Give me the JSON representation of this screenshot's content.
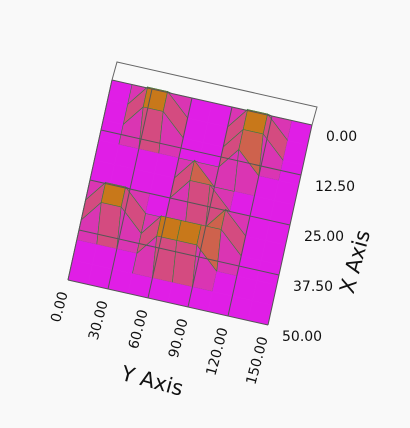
{
  "chart_data": {
    "type": "surface",
    "x_label": "X Axis",
    "y_label": "Y Axis",
    "x": [
      0,
      5,
      10,
      15,
      20,
      25,
      30,
      35,
      40,
      45,
      50
    ],
    "y": [
      0,
      15,
      30,
      45,
      60,
      75,
      90,
      105,
      120,
      135,
      150
    ],
    "z": [
      [
        0,
        0,
        0,
        0,
        0,
        0,
        0,
        0,
        0,
        0,
        0
      ],
      [
        0,
        0,
        1,
        1,
        0,
        0,
        0,
        1,
        1,
        0,
        0
      ],
      [
        0,
        0,
        1,
        1,
        0,
        0,
        0,
        1,
        1,
        0,
        0
      ],
      [
        0,
        0,
        0,
        0,
        0,
        0,
        0,
        1,
        0,
        0,
        0
      ],
      [
        0,
        0,
        0,
        0,
        0,
        1,
        0,
        0,
        0,
        0,
        0
      ],
      [
        0,
        0,
        0,
        0,
        0,
        1,
        1,
        0,
        0,
        0,
        0
      ],
      [
        0,
        1,
        1,
        0,
        0,
        0,
        0,
        1,
        0,
        0,
        0
      ],
      [
        0,
        1,
        1,
        0,
        1,
        1,
        1,
        1,
        0,
        0,
        0
      ],
      [
        0,
        0,
        0,
        0,
        1,
        1,
        1,
        0,
        0,
        0,
        0
      ],
      [
        0,
        0,
        0,
        0,
        0,
        0,
        0,
        0,
        0,
        0,
        0
      ],
      [
        0,
        0,
        0,
        0,
        0,
        0,
        0,
        0,
        0,
        0,
        0
      ]
    ],
    "xlim": [
      0,
      50
    ],
    "ylim": [
      0,
      150
    ],
    "xticks": [
      {
        "value": 0,
        "label": "0.00"
      },
      {
        "value": 12.5,
        "label": "12.50"
      },
      {
        "value": 25,
        "label": "25.00"
      },
      {
        "value": 37.5,
        "label": "37.50"
      },
      {
        "value": 50,
        "label": "50.00"
      }
    ],
    "yticks": [
      {
        "value": 0,
        "label": "0.00"
      },
      {
        "value": 30,
        "label": "30.00"
      },
      {
        "value": 60,
        "label": "60.00"
      },
      {
        "value": 90,
        "label": "90.00"
      },
      {
        "value": 120,
        "label": "120.00"
      },
      {
        "value": 150,
        "label": "150.00"
      }
    ],
    "grid": true,
    "low_color": "#e01ee6",
    "high_color": "#c8781a"
  }
}
